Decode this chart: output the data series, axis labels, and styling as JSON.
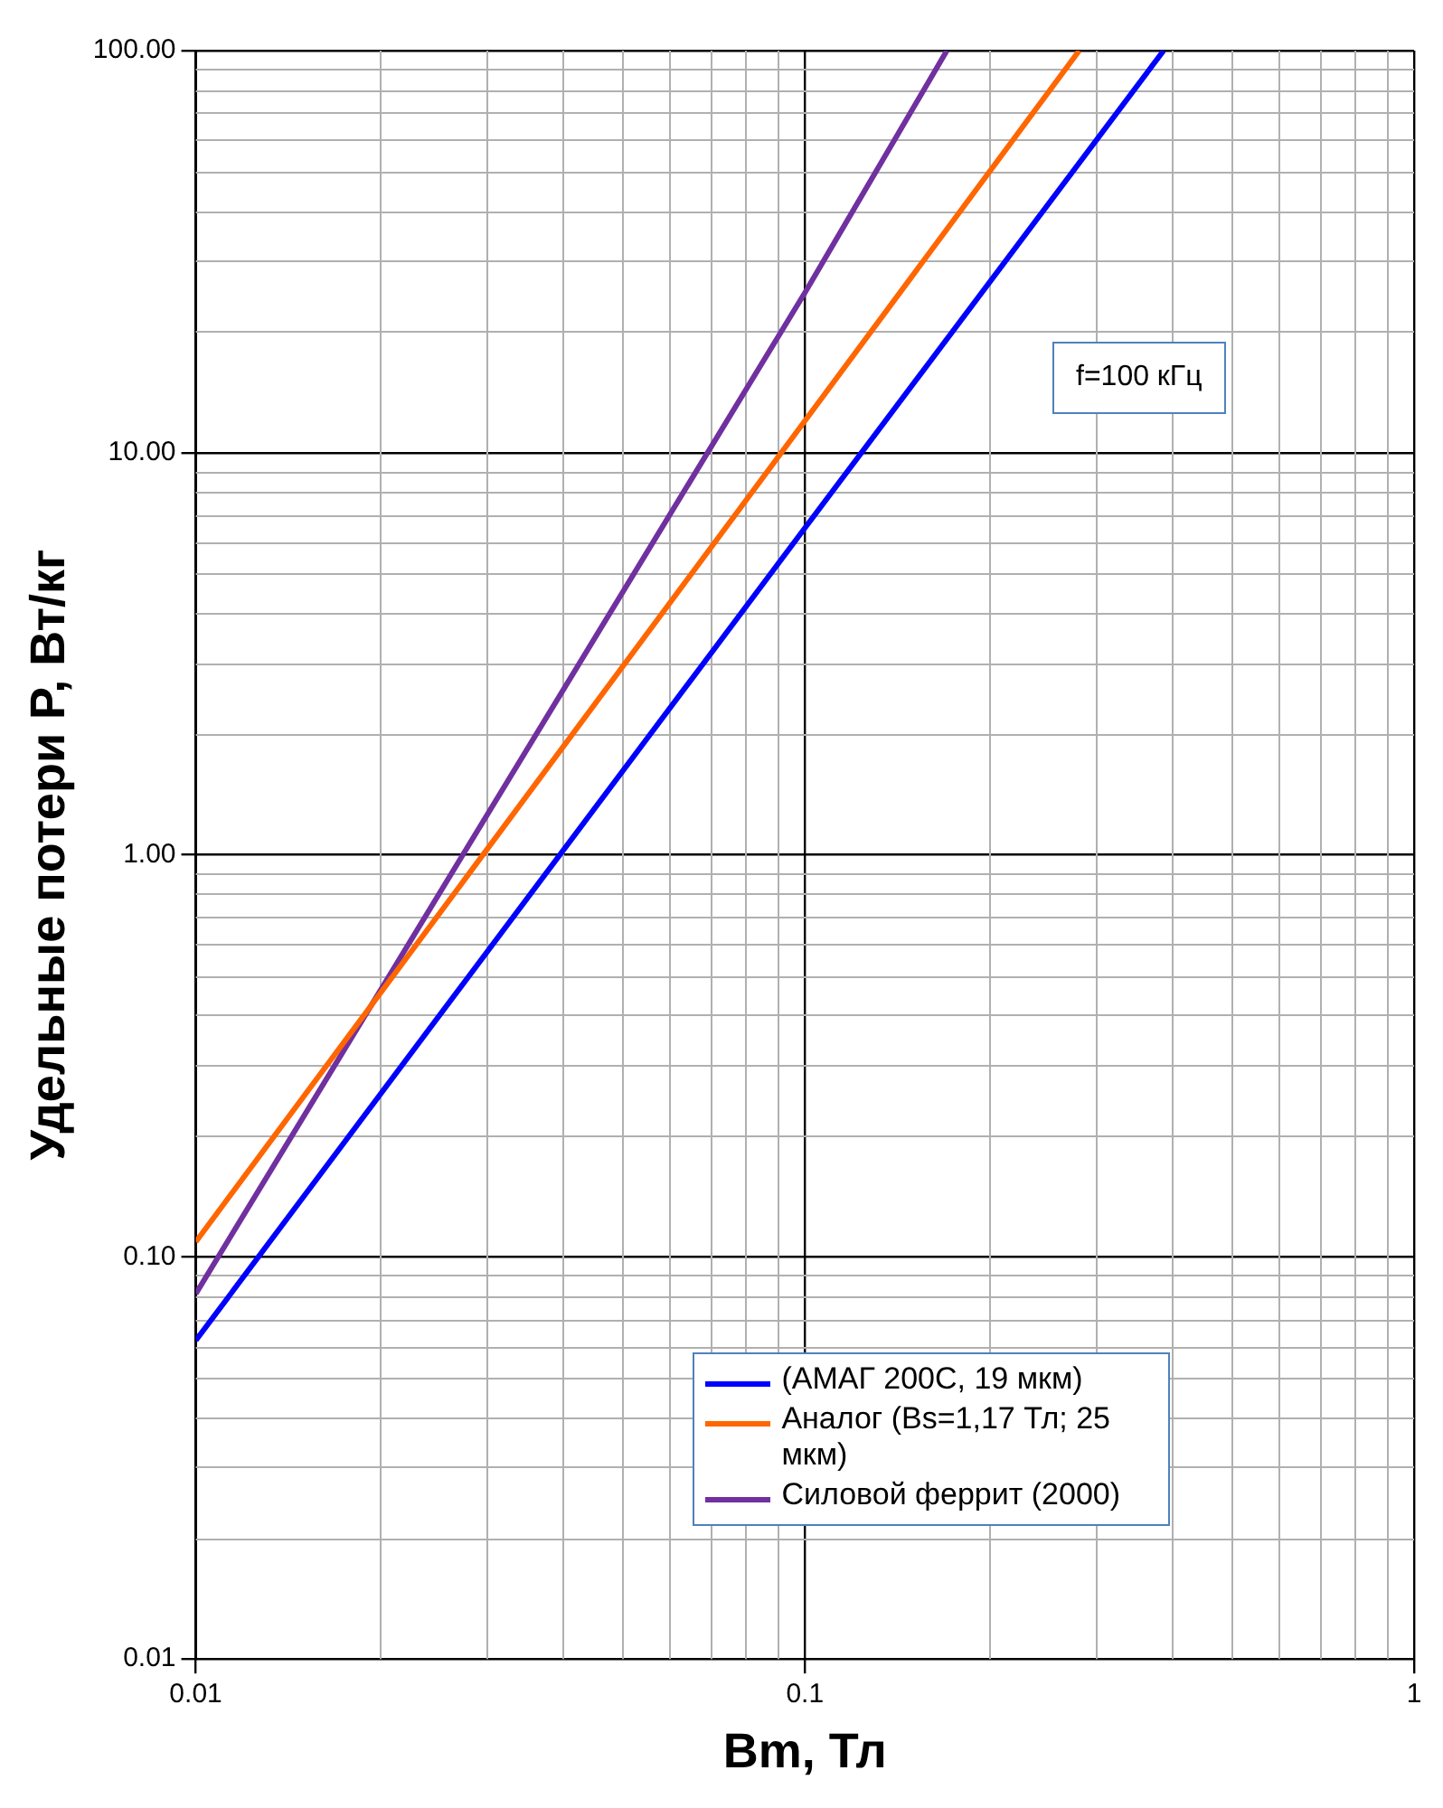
{
  "chart_data": {
    "type": "line",
    "xlabel": "Bm, Тл",
    "ylabel": "Удельные потери P, Вт/кг",
    "log": "xy",
    "grid": true,
    "legend": "bottom",
    "marker": "none",
    "line_style": "solid",
    "xlim": [
      0.01,
      1
    ],
    "ylim": [
      0.01,
      100
    ],
    "xticks": [
      0.01,
      0.1,
      1
    ],
    "yticks": [
      {
        "value": 0.01,
        "label": "0.01"
      },
      {
        "value": 0.1,
        "label": "0.10"
      },
      {
        "value": 1,
        "label": "1.00"
      },
      {
        "value": 10,
        "label": "10.00"
      },
      {
        "value": 100,
        "label": "100.00"
      }
    ],
    "annotations": [
      "f=100 кГц"
    ],
    "series": [
      {
        "name": "(АМАГ 200С, 19 мкм)",
        "color": "#0000ff",
        "x": [
          0.01,
          0.1,
          0.388
        ],
        "values": [
          0.062,
          6.5,
          100
        ]
      },
      {
        "name": "Аналог (Bs=1,17 Тл; 25 мкм)",
        "color": "#ff6600",
        "x": [
          0.01,
          0.1,
          0.282
        ],
        "values": [
          0.109,
          12,
          100
        ]
      },
      {
        "name": "Силовой феррит (2000)",
        "color": "#7030a0",
        "x": [
          0.01,
          0.1,
          0.171
        ],
        "values": [
          0.081,
          25,
          100
        ]
      }
    ]
  }
}
